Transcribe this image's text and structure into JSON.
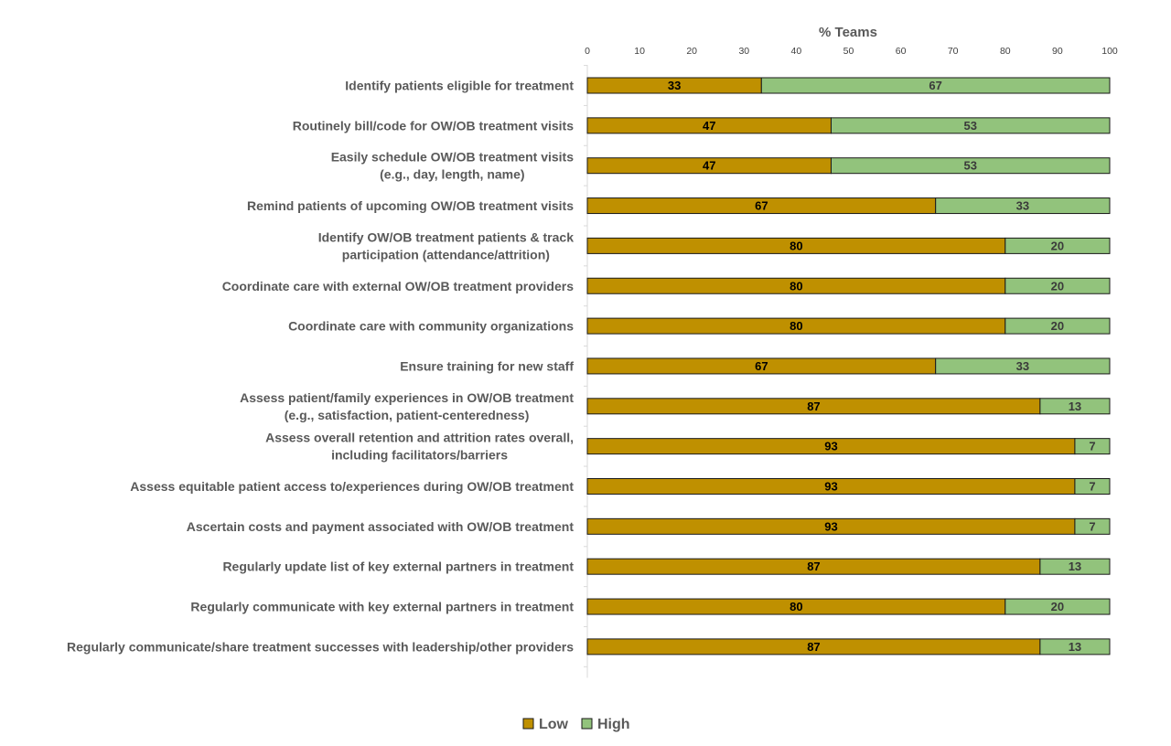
{
  "chart_data": {
    "type": "bar",
    "orientation": "horizontal",
    "stacked": true,
    "title": "",
    "xlabel": "% Teams",
    "ylabel": "",
    "xlim": [
      0,
      100
    ],
    "xticks": [
      0,
      10,
      20,
      30,
      40,
      50,
      60,
      70,
      80,
      90,
      100
    ],
    "axis_position": "top",
    "grid": false,
    "legend_position": "bottom",
    "categories": [
      [
        "Identify patients eligible for treatment"
      ],
      [
        "Routinely bill/code for OW/OB treatment visits"
      ],
      [
        "Easily schedule OW/OB treatment visits",
        "(e.g., day, length, name)"
      ],
      [
        "Remind patients of upcoming OW/OB treatment visits"
      ],
      [
        "Identify OW/OB treatment patients & track",
        "participation (attendance/attrition)"
      ],
      [
        "Coordinate care with external OW/OB treatment providers"
      ],
      [
        "Coordinate care with community organizations"
      ],
      [
        "Ensure training for new staff"
      ],
      [
        "Assess patient/family experiences in OW/OB treatment",
        "(e.g., satisfaction, patient-centeredness)"
      ],
      [
        "Assess overall retention and attrition rates overall,",
        "including facilitators/barriers"
      ],
      [
        "Assess equitable patient access to/experiences during OW/OB treatment"
      ],
      [
        "Ascertain costs and payment associated with OW/OB treatment"
      ],
      [
        "Regularly update list of key external partners in treatment"
      ],
      [
        "Regularly communicate with key external partners in treatment"
      ],
      [
        "Regularly communicate/share treatment successes with leadership/other providers"
      ]
    ],
    "series": [
      {
        "name": "Low",
        "color": "#bf9000",
        "values": [
          33.33,
          46.67,
          46.67,
          66.67,
          80,
          80,
          80,
          66.67,
          86.67,
          93.33,
          93.33,
          93.33,
          86.67,
          80,
          86.67
        ],
        "labels": [
          "33",
          "47",
          "47",
          "67",
          "80",
          "80",
          "80",
          "67",
          "87",
          "93",
          "93",
          "93",
          "87",
          "80",
          "87"
        ]
      },
      {
        "name": "High",
        "color": "#92c37c",
        "values": [
          66.67,
          53.33,
          53.33,
          33.33,
          20,
          20,
          20,
          33.33,
          13.33,
          6.67,
          6.67,
          6.67,
          13.33,
          20,
          13.33
        ],
        "labels": [
          "67",
          "53",
          "53",
          "33",
          "20",
          "20",
          "20",
          "33",
          "13",
          "7",
          "7",
          "7",
          "13",
          "20",
          "13"
        ]
      }
    ]
  }
}
